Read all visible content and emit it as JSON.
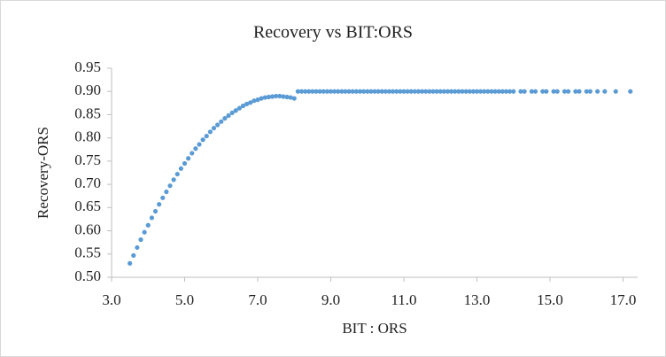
{
  "chart_data": {
    "type": "scatter",
    "title": "Recovery vs BIT:ORS",
    "x_label": "BIT : ORS",
    "y_label": "Recovery-ORS",
    "color": "#5b9bd5",
    "grid": false,
    "x": [
      3.5,
      3.6,
      3.7,
      3.8,
      3.9,
      4.0,
      4.1,
      4.2,
      4.3,
      4.4,
      4.5,
      4.6,
      4.7,
      4.8,
      4.9,
      5.0,
      5.1,
      5.2,
      5.3,
      5.4,
      5.5,
      5.6,
      5.7,
      5.8,
      5.9,
      6.0,
      6.1,
      6.2,
      6.3,
      6.4,
      6.5,
      6.6,
      6.7,
      6.8,
      6.9,
      7.0,
      7.1,
      7.2,
      7.3,
      7.4,
      7.5,
      7.6,
      7.7,
      7.8,
      7.9,
      8.0,
      8.1,
      8.2,
      8.3,
      8.4,
      8.5,
      8.6,
      8.7,
      8.8,
      8.9,
      9.0,
      9.1,
      9.2,
      9.3,
      9.4,
      9.5,
      9.6,
      9.7,
      9.8,
      9.9,
      10.0,
      10.1,
      10.2,
      10.3,
      10.4,
      10.5,
      10.6,
      10.7,
      10.8,
      10.9,
      11.0,
      11.1,
      11.2,
      11.3,
      11.4,
      11.5,
      11.6,
      11.7,
      11.8,
      11.9,
      12.0,
      12.1,
      12.2,
      12.3,
      12.4,
      12.5,
      12.6,
      12.7,
      12.8,
      12.9,
      13.0,
      13.1,
      13.2,
      13.3,
      13.4,
      13.5,
      13.6,
      13.7,
      13.8,
      13.9,
      14.0,
      14.2,
      14.3,
      14.5,
      14.6,
      14.8,
      14.9,
      15.1,
      15.2,
      15.4,
      15.5,
      15.7,
      15.8,
      16.0,
      16.1,
      16.3,
      16.5,
      16.8,
      17.2
    ],
    "values": [
      0.53,
      0.547,
      0.564,
      0.581,
      0.597,
      0.612,
      0.628,
      0.642,
      0.657,
      0.671,
      0.684,
      0.697,
      0.71,
      0.722,
      0.734,
      0.745,
      0.756,
      0.767,
      0.777,
      0.786,
      0.796,
      0.804,
      0.813,
      0.821,
      0.828,
      0.835,
      0.842,
      0.848,
      0.854,
      0.859,
      0.864,
      0.869,
      0.873,
      0.876,
      0.88,
      0.882,
      0.885,
      0.887,
      0.888,
      0.889,
      0.89,
      0.89,
      0.889,
      0.888,
      0.887,
      0.885,
      0.9,
      0.9,
      0.9,
      0.9,
      0.9,
      0.9,
      0.9,
      0.9,
      0.9,
      0.9,
      0.9,
      0.9,
      0.9,
      0.9,
      0.9,
      0.9,
      0.9,
      0.9,
      0.9,
      0.9,
      0.9,
      0.9,
      0.9,
      0.9,
      0.9,
      0.9,
      0.9,
      0.9,
      0.9,
      0.9,
      0.9,
      0.9,
      0.9,
      0.9,
      0.9,
      0.9,
      0.9,
      0.9,
      0.9,
      0.9,
      0.9,
      0.9,
      0.9,
      0.9,
      0.9,
      0.9,
      0.9,
      0.9,
      0.9,
      0.9,
      0.9,
      0.9,
      0.9,
      0.9,
      0.9,
      0.9,
      0.9,
      0.9,
      0.9,
      0.9,
      0.9,
      0.9,
      0.9,
      0.9,
      0.9,
      0.9,
      0.9,
      0.9,
      0.9,
      0.9,
      0.9,
      0.9,
      0.9,
      0.9,
      0.9,
      0.9,
      0.9,
      0.9
    ],
    "xlim": [
      3,
      17.4
    ],
    "xticks": [
      {
        "value": 3,
        "label": "3.0"
      },
      {
        "value": 5,
        "label": "5.0"
      },
      {
        "value": 7,
        "label": "7.0"
      },
      {
        "value": 9,
        "label": "9.0"
      },
      {
        "value": 11,
        "label": "11.0"
      },
      {
        "value": 13,
        "label": "13.0"
      },
      {
        "value": 15,
        "label": "15.0"
      },
      {
        "value": 17,
        "label": "17.0"
      }
    ],
    "ylim": [
      0.5,
      0.95
    ],
    "yticks": [
      {
        "value": 0.5,
        "label": "0.50"
      },
      0.55,
      {
        "value": 0.6,
        "label": "0.60"
      },
      0.65,
      {
        "value": 0.7,
        "label": "0.70"
      },
      0.75,
      {
        "value": 0.8,
        "label": "0.80"
      },
      0.85,
      {
        "value": 0.9,
        "label": "0.90"
      },
      0.95
    ]
  }
}
